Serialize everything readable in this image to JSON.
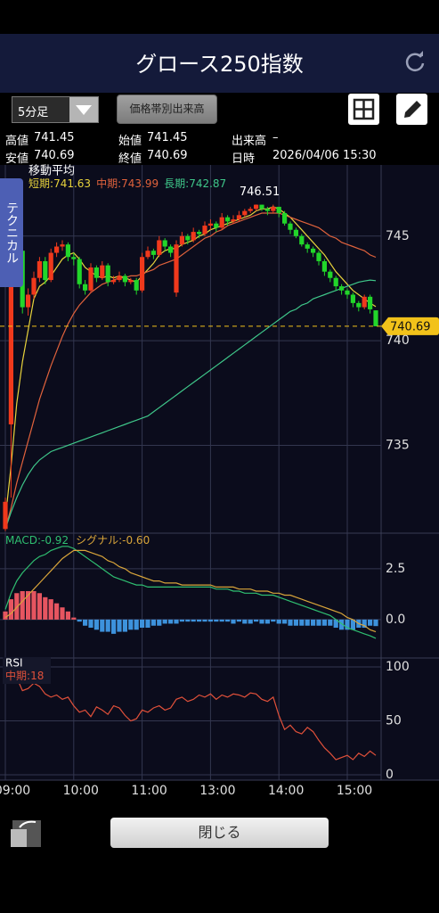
{
  "header": {
    "title": "グロース250指数"
  },
  "toolbar": {
    "interval": "5分足",
    "volume_profile_button": "価格帯別出来高"
  },
  "quote": {
    "high_label": "高値",
    "high": 741.45,
    "open_label": "始値",
    "open": 741.45,
    "volume_label": "出来高",
    "volume": "–",
    "low_label": "安値",
    "low": 740.69,
    "close_label": "終値",
    "close": 740.69,
    "datetime_label": "日時",
    "datetime": "2026/04/06 15:30"
  },
  "side_tab": "テクニカル",
  "chart_data": [
    {
      "type": "candlestick",
      "title": "移動平均",
      "legend_separator": ":",
      "categories": [
        "09:00",
        null,
        null,
        null,
        null,
        null,
        null,
        null,
        null,
        null,
        null,
        null,
        "10:00",
        null,
        null,
        null,
        null,
        null,
        null,
        null,
        null,
        null,
        null,
        null,
        "11:00",
        null,
        null,
        null,
        null,
        null,
        null,
        null,
        null,
        null,
        null,
        null,
        "13:00",
        null,
        null,
        null,
        null,
        null,
        null,
        null,
        null,
        null,
        null,
        null,
        "14:00",
        null,
        null,
        null,
        null,
        null,
        null,
        null,
        null,
        null,
        null,
        null,
        "15:00",
        null,
        null,
        null,
        null,
        null
      ],
      "open": [
        731.0,
        736.0,
        743.1,
        744.3,
        741.6,
        742.2,
        743.0,
        743.8,
        742.9,
        744.2,
        744.5,
        744.6,
        744.0,
        743.9,
        742.7,
        742.4,
        743.5,
        743.0,
        743.6,
        742.8,
        742.9,
        743.1,
        742.8,
        742.9,
        742.4,
        744.0,
        744.3,
        744.1,
        744.8,
        744.5,
        742.3,
        744.6,
        745.0,
        744.8,
        745.2,
        745.1,
        745.5,
        745.6,
        745.4,
        745.9,
        745.7,
        745.8,
        746.0,
        746.2,
        746.3,
        746.5,
        746.3,
        746.2,
        746.4,
        746.1,
        745.6,
        745.3,
        745.0,
        744.6,
        744.4,
        744.2,
        743.8,
        743.3,
        743.0,
        742.6,
        742.4,
        742.2,
        741.8,
        741.6,
        742.1,
        741.45
      ],
      "high": [
        732.5,
        743.4,
        744.6,
        744.5,
        742.5,
        743.3,
        744.0,
        744.0,
        744.4,
        744.7,
        744.8,
        744.7,
        744.2,
        744.0,
        742.9,
        743.7,
        743.6,
        743.8,
        743.7,
        743.1,
        743.3,
        743.2,
        743.0,
        743.0,
        744.2,
        744.5,
        744.4,
        745.0,
        744.9,
        744.6,
        744.8,
        745.2,
        745.1,
        745.4,
        745.3,
        745.7,
        745.8,
        745.7,
        746.1,
        746.0,
        746.0,
        746.2,
        746.3,
        746.4,
        746.51,
        746.5,
        746.4,
        746.5,
        746.4,
        746.2,
        745.7,
        745.4,
        745.1,
        744.7,
        744.5,
        744.3,
        743.9,
        743.4,
        743.1,
        742.7,
        742.5,
        742.3,
        741.9,
        742.2,
        742.2,
        741.45
      ],
      "low": [
        730.9,
        732.5,
        742.9,
        741.3,
        741.2,
        742.0,
        742.8,
        742.7,
        742.8,
        744.0,
        744.3,
        743.8,
        743.6,
        742.5,
        742.2,
        742.3,
        742.8,
        742.9,
        742.6,
        742.7,
        742.8,
        742.6,
        742.7,
        742.2,
        742.3,
        743.9,
        743.9,
        744.0,
        744.3,
        744.0,
        742.1,
        744.5,
        744.6,
        744.7,
        744.9,
        745.0,
        745.3,
        745.2,
        745.3,
        745.5,
        745.6,
        745.7,
        745.9,
        746.1,
        746.2,
        746.2,
        746.0,
        746.1,
        745.9,
        745.5,
        745.1,
        744.9,
        744.5,
        744.2,
        744.0,
        743.6,
        743.1,
        742.8,
        742.4,
        742.2,
        742.0,
        741.6,
        741.4,
        741.5,
        741.3,
        740.69
      ],
      "close": [
        732.3,
        743.1,
        744.3,
        741.6,
        742.2,
        743.0,
        743.8,
        742.9,
        744.2,
        744.5,
        744.6,
        744.0,
        743.9,
        742.7,
        742.4,
        743.5,
        743.0,
        743.6,
        742.8,
        742.9,
        743.1,
        742.8,
        742.9,
        742.4,
        744.0,
        744.3,
        744.1,
        744.8,
        744.5,
        744.2,
        744.6,
        745.0,
        744.8,
        745.2,
        745.1,
        745.5,
        745.6,
        745.4,
        745.9,
        745.7,
        745.8,
        746.0,
        746.2,
        746.3,
        746.5,
        746.3,
        746.2,
        746.4,
        746.1,
        745.6,
        745.3,
        745.0,
        744.6,
        744.4,
        744.2,
        743.8,
        743.3,
        743.0,
        742.6,
        742.4,
        742.2,
        741.8,
        741.6,
        742.1,
        741.5,
        740.69
      ],
      "up_color": "#f0391c",
      "down_color": "#22d62a",
      "current_price_color": "#f2c21a",
      "high_label_index": 44,
      "series": [
        {
          "name": "短期",
          "color": "#e8d33c",
          "values": [
            731.5,
            734,
            737,
            739,
            740.5,
            742.0,
            742.6,
            742.8,
            743.1,
            743.5,
            743.9,
            744.1,
            744.2,
            743.9,
            743.5,
            743.3,
            743.1,
            743.0,
            743.1,
            743.0,
            743.1,
            743.0,
            742.9,
            742.8,
            743.1,
            743.4,
            743.7,
            744.1,
            744.3,
            744.4,
            744.4,
            744.6,
            744.7,
            744.8,
            745.0,
            745.1,
            745.3,
            745.4,
            745.5,
            745.6,
            745.7,
            745.8,
            745.9,
            746.0,
            746.2,
            746.3,
            746.3,
            746.4,
            746.3,
            746.1,
            745.9,
            745.6,
            745.3,
            745.0,
            744.7,
            744.4,
            744.1,
            743.7,
            743.3,
            743.0,
            742.7,
            742.4,
            742.2,
            742.0,
            741.8,
            741.63
          ]
        },
        {
          "name": "中期",
          "color": "#e0623c",
          "values": [
            731.0,
            732,
            733.2,
            734.2,
            735.2,
            736.2,
            737.2,
            738.0,
            738.8,
            739.5,
            740.2,
            740.8,
            741.3,
            741.7,
            742.0,
            742.3,
            742.5,
            742.7,
            742.8,
            742.9,
            743.0,
            743.0,
            743.1,
            743.1,
            743.2,
            743.3,
            743.4,
            743.6,
            743.7,
            743.8,
            743.9,
            744.1,
            744.3,
            744.5,
            744.7,
            744.9,
            745.0,
            745.2,
            745.3,
            745.5,
            745.6,
            745.7,
            745.8,
            745.9,
            746.0,
            746.1,
            746.1,
            746.1,
            746.1,
            746.0,
            745.9,
            745.8,
            745.7,
            745.6,
            745.5,
            745.4,
            745.2,
            745.0,
            744.9,
            744.7,
            744.6,
            744.5,
            744.4,
            744.3,
            744.1,
            743.99
          ]
        },
        {
          "name": "長期",
          "color": "#3fc78a",
          "values": [
            731.0,
            731.8,
            732.5,
            733.1,
            733.6,
            734.0,
            734.3,
            734.5,
            734.7,
            734.8,
            734.9,
            735.0,
            735.1,
            735.2,
            735.3,
            735.4,
            735.5,
            735.6,
            735.7,
            735.8,
            735.9,
            736.0,
            736.1,
            736.2,
            736.3,
            736.4,
            736.6,
            736.8,
            737.0,
            737.2,
            737.4,
            737.6,
            737.8,
            738.0,
            738.2,
            738.4,
            738.6,
            738.8,
            739.0,
            739.2,
            739.4,
            739.6,
            739.8,
            740.0,
            740.2,
            740.4,
            740.6,
            740.8,
            741.0,
            741.2,
            741.4,
            741.5,
            741.7,
            741.8,
            742.0,
            742.1,
            742.2,
            742.3,
            742.4,
            742.5,
            742.6,
            742.7,
            742.8,
            742.85,
            742.9,
            742.87
          ]
        }
      ],
      "ylim": [
        730.8,
        748.4
      ],
      "yticks": [
        735,
        740,
        745
      ],
      "grid": true
    },
    {
      "type": "macd",
      "series": [
        {
          "name": "MACD",
          "color": "#2fbf71",
          "legend_value": -0.92,
          "values": [
            0.5,
            1.3,
            1.9,
            2.3,
            2.6,
            2.9,
            3.1,
            3.2,
            3.4,
            3.5,
            3.6,
            3.6,
            3.5,
            3.3,
            3.1,
            2.9,
            2.7,
            2.5,
            2.3,
            2.1,
            2.0,
            1.9,
            1.8,
            1.7,
            1.7,
            1.6,
            1.6,
            1.6,
            1.6,
            1.6,
            1.6,
            1.6,
            1.6,
            1.6,
            1.6,
            1.6,
            1.6,
            1.5,
            1.5,
            1.5,
            1.4,
            1.4,
            1.3,
            1.3,
            1.3,
            1.2,
            1.2,
            1.2,
            1.1,
            1.0,
            0.9,
            0.8,
            0.7,
            0.6,
            0.5,
            0.4,
            0.3,
            0.2,
            0.0,
            -0.2,
            -0.4,
            -0.5,
            -0.6,
            -0.7,
            -0.8,
            -0.92
          ]
        },
        {
          "name": "シグナル",
          "color": "#d9a53a",
          "legend_value": {
            "value": -0.6,
            "label": "-0.60"
          },
          "values": [
            0.1,
            0.3,
            0.6,
            0.9,
            1.2,
            1.5,
            1.8,
            2.1,
            2.4,
            2.7,
            3.0,
            3.2,
            3.4,
            3.4,
            3.4,
            3.3,
            3.2,
            3.1,
            2.9,
            2.8,
            2.6,
            2.5,
            2.3,
            2.2,
            2.1,
            2.0,
            1.9,
            1.9,
            1.8,
            1.8,
            1.8,
            1.7,
            1.7,
            1.7,
            1.7,
            1.7,
            1.7,
            1.6,
            1.6,
            1.6,
            1.6,
            1.5,
            1.5,
            1.5,
            1.4,
            1.4,
            1.4,
            1.3,
            1.3,
            1.2,
            1.2,
            1.1,
            1.0,
            0.9,
            0.8,
            0.7,
            0.6,
            0.5,
            0.4,
            0.3,
            0.1,
            0.0,
            -0.2,
            -0.3,
            -0.5,
            -0.6
          ]
        }
      ],
      "histogram": {
        "up_color": "#e65560",
        "down_color": "#3d92dc",
        "values": [
          0.4,
          1.0,
          1.3,
          1.4,
          1.4,
          1.4,
          1.3,
          1.1,
          1.0,
          0.8,
          0.6,
          0.4,
          0.1,
          -0.1,
          -0.3,
          -0.4,
          -0.5,
          -0.6,
          -0.6,
          -0.7,
          -0.6,
          -0.6,
          -0.5,
          -0.5,
          -0.4,
          -0.4,
          -0.3,
          -0.3,
          -0.2,
          -0.2,
          -0.2,
          -0.1,
          -0.1,
          -0.1,
          -0.1,
          -0.1,
          -0.1,
          -0.1,
          -0.1,
          -0.1,
          -0.2,
          -0.1,
          -0.2,
          -0.2,
          -0.1,
          -0.2,
          -0.2,
          -0.1,
          -0.2,
          -0.2,
          -0.3,
          -0.3,
          -0.3,
          -0.3,
          -0.3,
          -0.3,
          -0.3,
          -0.3,
          -0.4,
          -0.5,
          -0.5,
          -0.5,
          -0.4,
          -0.4,
          -0.3,
          -0.32
        ]
      },
      "ylim": [
        -1.89,
        4.25
      ],
      "yticks": [
        {
          "value": 0,
          "label": "0.0"
        },
        2.5
      ],
      "grid": true
    },
    {
      "type": "line",
      "title": "RSI",
      "series": [
        {
          "name": "中期",
          "color": "#e0503a",
          "values": [
            95,
            92,
            90,
            78,
            80,
            85,
            82,
            75,
            72,
            74,
            70,
            72,
            64,
            58,
            60,
            54,
            63,
            60,
            56,
            64,
            62,
            55,
            50,
            52,
            60,
            58,
            62,
            64,
            60,
            62,
            70,
            72,
            68,
            70,
            74,
            72,
            75,
            70,
            74,
            72,
            75,
            74,
            72,
            76,
            75,
            70,
            68,
            72,
            55,
            42,
            46,
            40,
            38,
            44,
            40,
            32,
            25,
            20,
            14,
            16,
            18,
            14,
            20,
            17,
            22,
            18
          ]
        }
      ],
      "ylim": [
        -5,
        108.3
      ],
      "yticks": [
        0,
        50,
        100
      ],
      "grid": true
    }
  ],
  "footer": {
    "close_button": "閉じる"
  }
}
